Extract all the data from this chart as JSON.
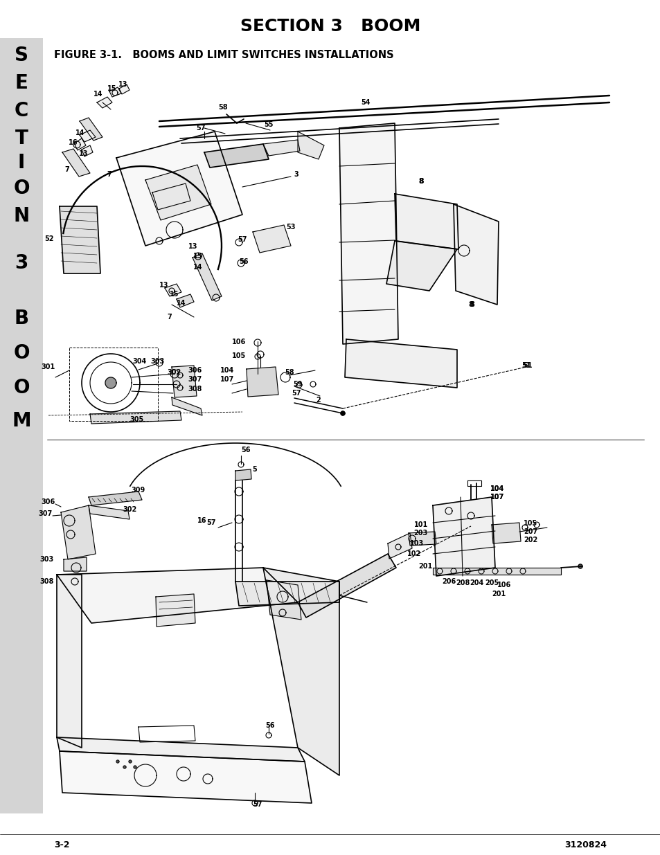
{
  "title": "SECTION 3   BOOM",
  "subtitle": "FIGURE 3-1.   BOOMS AND LIMIT SWITCHES INSTALLATIONS",
  "page_left": "3-2",
  "page_right": "3120824",
  "sidebar_letters": [
    "S",
    "E",
    "C",
    "T",
    "I",
    "O",
    "N",
    "3",
    "B",
    "O",
    "O",
    "M"
  ],
  "sidebar_color": "#d4d4d4",
  "bg_color": "#ffffff",
  "text_color": "#000000",
  "title_fontsize": 18,
  "subtitle_fontsize": 10.5,
  "footer_fontsize": 9,
  "sidebar_fontsize": 20,
  "fig_width": 9.54,
  "fig_height": 12.35,
  "dpi": 100
}
